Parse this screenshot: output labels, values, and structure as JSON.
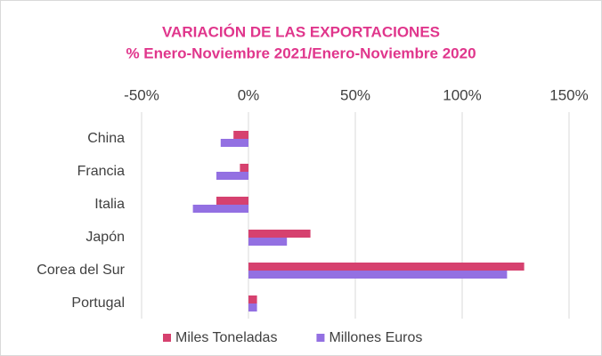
{
  "chart_data": {
    "type": "barh",
    "title": "VARIACIÓN DE LAS EXPORTACIONES",
    "subtitle": "% Enero-Noviembre 2021/Enero-Noviembre 2020",
    "categories": [
      "China",
      "Francia",
      "Italia",
      "Japón",
      "Corea del Sur",
      "Portugal"
    ],
    "series": [
      {
        "name": "Miles Toneladas",
        "color": "#d6416f",
        "values": [
          -7,
          -4,
          -15,
          29,
          129,
          4
        ]
      },
      {
        "name": "Millones Euros",
        "color": "#9370e2",
        "values": [
          -13,
          -15,
          -26,
          18,
          121,
          4
        ]
      }
    ],
    "xlim": [
      -50,
      150
    ],
    "xticks": [
      {
        "value": -50,
        "label": "-50%"
      },
      {
        "value": 0,
        "label": "0%"
      },
      {
        "value": 50,
        "label": "50%"
      },
      {
        "value": 100,
        "label": "100%"
      },
      {
        "value": 150,
        "label": "150%"
      }
    ],
    "grid": true,
    "legend": "bottom"
  }
}
